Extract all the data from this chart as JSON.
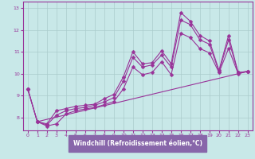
{
  "xlabel": "Windchill (Refroidissement éolien,°C)",
  "background_color": "#c8e8e8",
  "label_bg_color": "#8866aa",
  "line_color": "#993399",
  "xlim": [
    -0.5,
    23.5
  ],
  "ylim": [
    7.4,
    13.3
  ],
  "xticks": [
    0,
    1,
    2,
    3,
    4,
    5,
    6,
    7,
    8,
    9,
    10,
    11,
    12,
    13,
    14,
    15,
    16,
    17,
    18,
    19,
    20,
    21,
    22,
    23
  ],
  "yticks": [
    8,
    9,
    10,
    11,
    12,
    13
  ],
  "grid_color": "#aacccc",
  "series": [
    {
      "x": [
        1,
        23
      ],
      "y": [
        7.8,
        10.1
      ],
      "marker": null
    },
    {
      "x": [
        0,
        1,
        2,
        3,
        4,
        5,
        6,
        7,
        8,
        9,
        10,
        11,
        12,
        13,
        14,
        15,
        16,
        17,
        18,
        19,
        20,
        21,
        22,
        23
      ],
      "y": [
        9.3,
        7.8,
        7.7,
        8.3,
        8.4,
        8.5,
        8.55,
        8.6,
        8.85,
        9.05,
        9.85,
        11.0,
        10.45,
        10.5,
        11.05,
        10.45,
        12.8,
        12.4,
        11.75,
        11.5,
        10.15,
        11.75,
        10.05,
        10.1
      ],
      "marker": "D"
    },
    {
      "x": [
        0,
        1,
        2,
        3,
        4,
        5,
        6,
        7,
        8,
        9,
        10,
        11,
        12,
        13,
        14,
        15,
        16,
        17,
        18,
        19,
        20,
        21,
        22,
        23
      ],
      "y": [
        9.3,
        7.8,
        7.65,
        8.1,
        8.3,
        8.4,
        8.45,
        8.55,
        8.7,
        8.9,
        9.65,
        10.75,
        10.3,
        10.4,
        10.85,
        10.3,
        12.45,
        12.25,
        11.55,
        11.35,
        10.1,
        11.55,
        10.05,
        10.1
      ],
      "marker": "D"
    },
    {
      "x": [
        0,
        1,
        2,
        3,
        4,
        5,
        6,
        7,
        8,
        9,
        10,
        11,
        12,
        13,
        14,
        15,
        16,
        17,
        18,
        19,
        20,
        21,
        22,
        23
      ],
      "y": [
        9.3,
        7.8,
        7.6,
        7.7,
        8.15,
        8.3,
        8.38,
        8.45,
        8.58,
        8.72,
        9.3,
        10.3,
        9.95,
        10.05,
        10.55,
        9.95,
        11.85,
        11.65,
        11.15,
        10.95,
        10.05,
        11.15,
        10.0,
        10.1
      ],
      "marker": "D"
    }
  ],
  "marker_size": 2.5,
  "linewidth": 0.8
}
